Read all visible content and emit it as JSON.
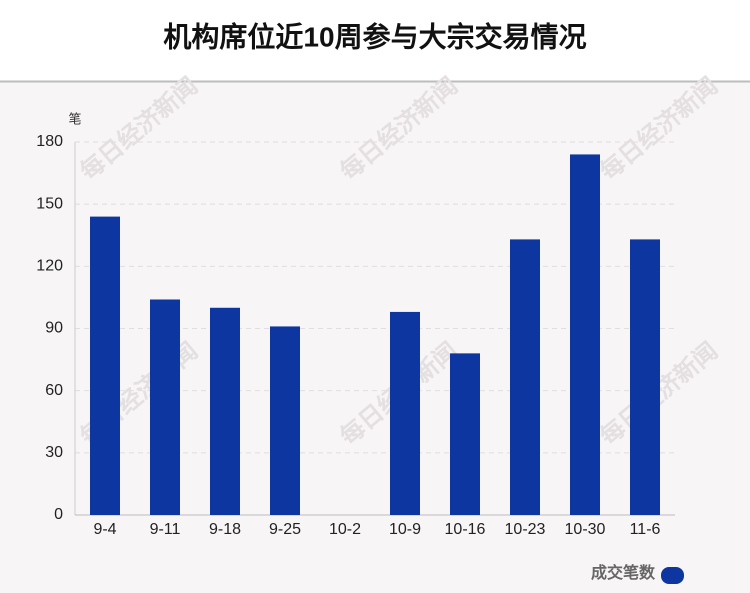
{
  "chart_data": {
    "type": "bar",
    "title": "机构席位近10周参与大宗交易情况",
    "y_unit": "笔",
    "categories": [
      "9-4",
      "9-11",
      "9-18",
      "9-25",
      "10-2",
      "10-9",
      "10-16",
      "10-23",
      "10-30",
      "11-6"
    ],
    "series": [
      {
        "name": "成交笔数",
        "color": "#0d36a0",
        "values": [
          144,
          104,
          100,
          91,
          0,
          98,
          78,
          133,
          174,
          133
        ]
      }
    ],
    "ylim": [
      0,
      180
    ],
    "yticks": [
      0,
      30,
      60,
      90,
      120,
      150,
      180
    ],
    "grid": true,
    "legend": "bottom-right",
    "watermark": "每日经济新闻"
  }
}
